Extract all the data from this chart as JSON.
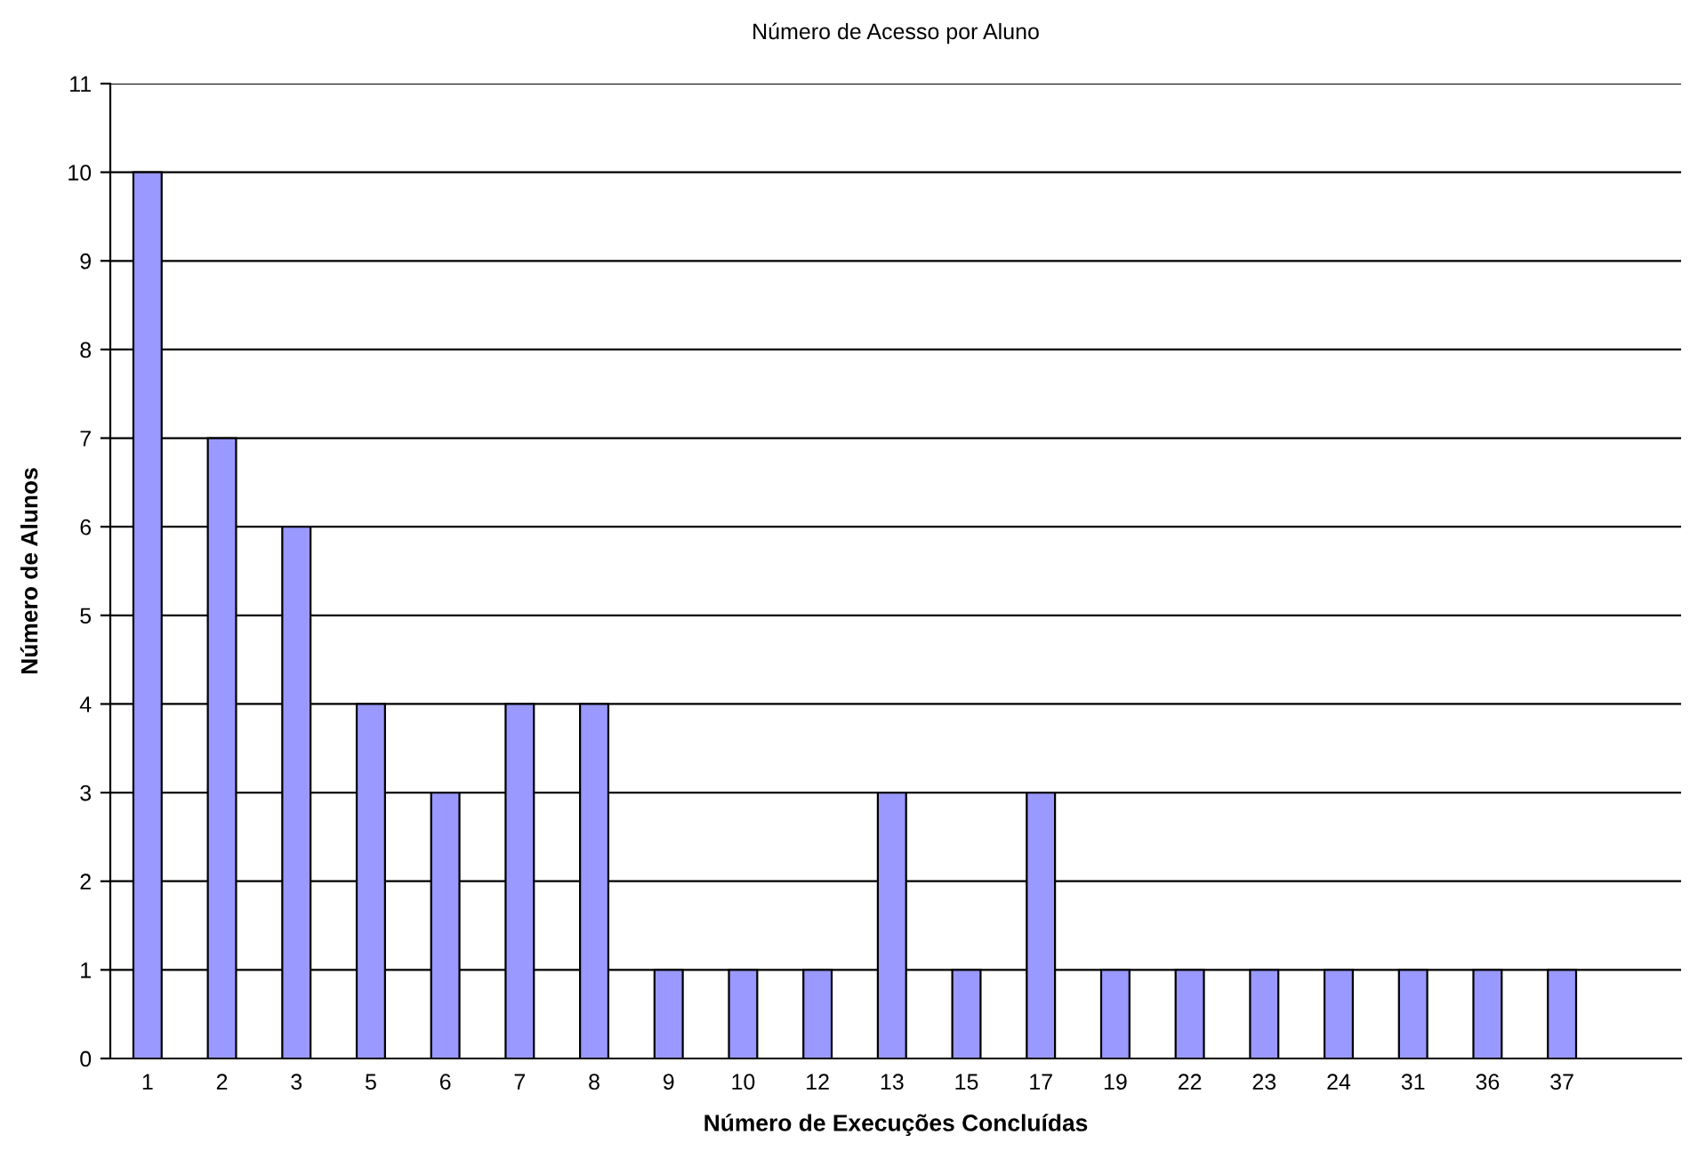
{
  "chart_data": {
    "type": "bar",
    "title": "Número de Acesso por Aluno",
    "xlabel": "Número de Execuções Concluídas",
    "ylabel": "Número de Alunos",
    "categories": [
      "1",
      "2",
      "3",
      "5",
      "6",
      "7",
      "8",
      "9",
      "10",
      "12",
      "13",
      "15",
      "17",
      "19",
      "22",
      "23",
      "24",
      "31",
      "36",
      "37"
    ],
    "values": [
      10,
      7,
      6,
      4,
      3,
      4,
      4,
      1,
      1,
      1,
      3,
      1,
      3,
      1,
      1,
      1,
      1,
      1,
      1,
      1
    ],
    "color": "#9999ff",
    "ylim": [
      0,
      11
    ],
    "yticks": [
      0,
      1,
      2,
      3,
      4,
      5,
      6,
      7,
      8,
      9,
      10,
      11
    ],
    "grid": "y"
  }
}
